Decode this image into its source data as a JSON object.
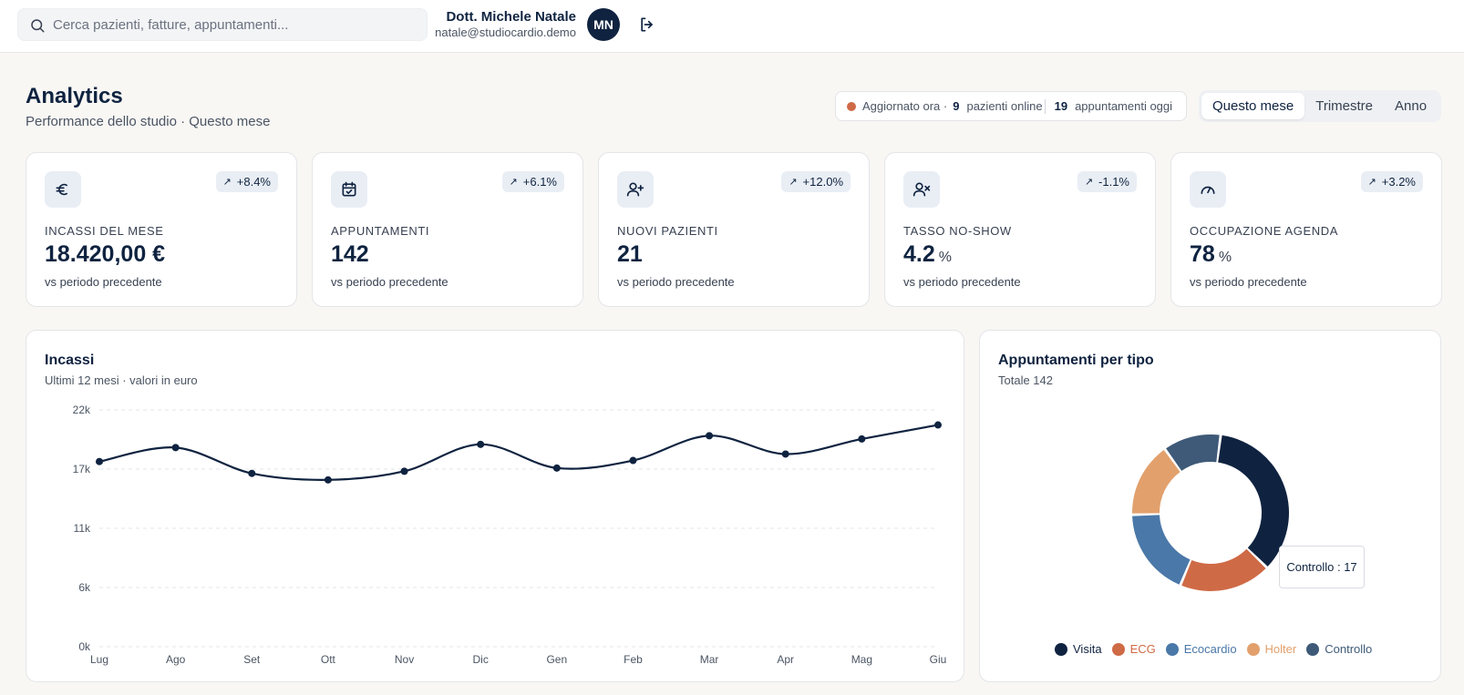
{
  "search": {
    "placeholder": "Cerca pazienti, fatture, appuntamenti..."
  },
  "user": {
    "name": "Dott. Michele Natale",
    "email": "natale@studiocardio.demo",
    "initials": "MN"
  },
  "icons": {
    "search": "search-icon",
    "logout": "logout-icon",
    "kpi": [
      "euro-icon",
      "calendar-check-icon",
      "user-plus-icon",
      "user-x-icon",
      "gauge-icon"
    ],
    "trend": "arrow-up-right-icon"
  },
  "header": {
    "title": "Analytics",
    "subtitle": "Performance dello studio · Questo mese"
  },
  "status": {
    "updated": "Aggiornato ora ·",
    "online_count": "9",
    "online_label": "pazienti online",
    "appointments_count": "19",
    "appointments_label": "appuntamenti oggi"
  },
  "periods": [
    "Questo mese",
    "Trimestre",
    "Anno"
  ],
  "active_period": "Questo mese",
  "kpis": [
    {
      "label": "INCASSI DEL MESE",
      "value": "18.420,00 €",
      "unit": "",
      "delta": "+8.4%",
      "note": "vs periodo precedente"
    },
    {
      "label": "APPUNTAMENTI",
      "value": "142",
      "unit": "",
      "delta": "+6.1%",
      "note": "vs periodo precedente"
    },
    {
      "label": "NUOVI PAZIENTI",
      "value": "21",
      "unit": "",
      "delta": "+12.0%",
      "note": "vs periodo precedente"
    },
    {
      "label": "TASSO NO-SHOW",
      "value": "4.2",
      "unit": "%",
      "delta": "-1.1%",
      "note": "vs periodo precedente"
    },
    {
      "label": "OCCUPAZIONE AGENDA",
      "value": "78",
      "unit": "%",
      "delta": "+3.2%",
      "note": "vs periodo precedente"
    }
  ],
  "revenue_panel": {
    "title": "Incassi",
    "subtitle": "Ultimi 12 mesi · valori in euro"
  },
  "types_panel": {
    "title": "Appuntamenti per tipo",
    "subtitle": "Totale 142",
    "tooltip": "Controllo : 17"
  },
  "colors": {
    "navy": "#0f2340",
    "accent": "#cf6a46"
  },
  "chart_data": [
    {
      "type": "line",
      "categories": [
        "Lug",
        "Ago",
        "Set",
        "Ott",
        "Nov",
        "Dic",
        "Gen",
        "Feb",
        "Mar",
        "Apr",
        "Mag",
        "Giu"
      ],
      "values": [
        17200,
        18500,
        16100,
        15500,
        16300,
        18800,
        16600,
        17300,
        19600,
        17900,
        19300,
        20600
      ],
      "ylim": [
        0,
        22000
      ],
      "yticks": [
        "0k",
        "6k",
        "11k",
        "17k",
        "22k"
      ],
      "color": "#0f2340",
      "grid": true
    },
    {
      "type": "pie",
      "donut": true,
      "categories": [
        "Visita",
        "ECG",
        "Ecocardio",
        "Holter",
        "Controllo"
      ],
      "values": [
        50,
        27,
        26,
        22,
        17
      ],
      "colors": [
        "#0f2340",
        "#cf6a46",
        "#4a78a8",
        "#e2a06c",
        "#3f5a78"
      ],
      "legend": "bottom"
    }
  ]
}
